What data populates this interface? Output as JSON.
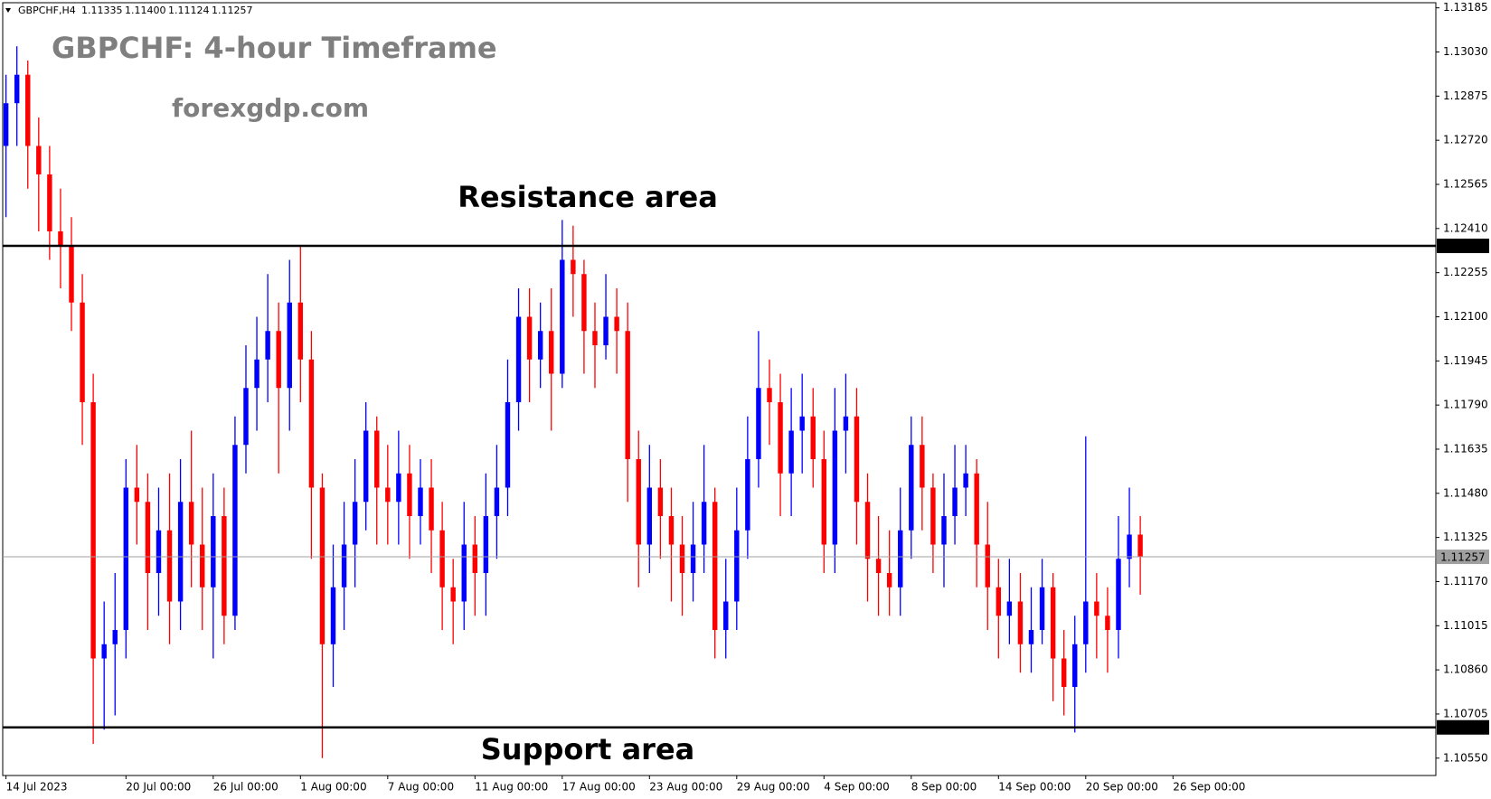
{
  "chart_data": {
    "type": "candlestick",
    "title": "GBPCHF: 4-hour Timeframe",
    "subtitle": "forexgdp.com",
    "header": {
      "symbol": "GBPCHF,H4",
      "open": "1.11335",
      "high": "1.11400",
      "low": "1.11124",
      "close": "1.11257"
    },
    "up_color": "#0000ff",
    "down_color": "#ff0000",
    "open": [
      1.127,
      1.1285,
      1.1295,
      1.127,
      1.126,
      1.124,
      1.1235,
      1.1215,
      1.118,
      1.109,
      1.1095,
      1.11,
      1.115,
      1.1145,
      1.112,
      1.1135,
      1.111,
      1.1145,
      1.113,
      1.1115,
      1.114,
      1.1105,
      1.1165,
      1.1185,
      1.1195,
      1.1205,
      1.1185,
      1.1215,
      1.1195,
      1.115,
      1.1095,
      1.1115,
      1.113,
      1.1145,
      1.117,
      1.115,
      1.1145,
      1.1155,
      1.114,
      1.115,
      1.1135,
      1.1115,
      1.111,
      1.113,
      1.112,
      1.114,
      1.115,
      1.118,
      1.121,
      1.1195,
      1.1205,
      1.119,
      1.123,
      1.1225,
      1.1205,
      1.12,
      1.121,
      1.1205,
      1.116,
      1.113,
      1.115,
      1.114,
      1.113,
      1.112,
      1.113,
      1.1145,
      1.11,
      1.111,
      1.1135,
      1.116,
      1.1185,
      1.118,
      1.1155,
      1.117,
      1.1175,
      1.116,
      1.113,
      1.117,
      1.1175,
      1.1145,
      1.1125,
      1.112,
      1.1115,
      1.1135,
      1.1165,
      1.115,
      1.113,
      1.114,
      1.115,
      1.1155,
      1.113,
      1.1115,
      1.1105,
      1.111,
      1.1095,
      1.11,
      1.1115,
      1.109,
      1.108,
      1.1095,
      1.111,
      1.1105,
      1.11,
      1.1125,
      1.11335
    ],
    "high": [
      1.1295,
      1.1305,
      1.13,
      1.128,
      1.127,
      1.1255,
      1.1245,
      1.1225,
      1.119,
      1.111,
      1.112,
      1.116,
      1.1165,
      1.1155,
      1.115,
      1.1155,
      1.116,
      1.117,
      1.115,
      1.1155,
      1.115,
      1.1175,
      1.12,
      1.121,
      1.1225,
      1.1215,
      1.123,
      1.1235,
      1.1205,
      1.1155,
      1.113,
      1.1145,
      1.116,
      1.118,
      1.1175,
      1.1165,
      1.117,
      1.1165,
      1.116,
      1.116,
      1.1145,
      1.1125,
      1.1145,
      1.114,
      1.1155,
      1.1165,
      1.1195,
      1.122,
      1.122,
      1.1215,
      1.122,
      1.1244,
      1.1242,
      1.123,
      1.1215,
      1.1225,
      1.122,
      1.1215,
      1.117,
      1.1165,
      1.116,
      1.115,
      1.114,
      1.1145,
      1.1165,
      1.115,
      1.1125,
      1.115,
      1.1175,
      1.1205,
      1.1195,
      1.119,
      1.1185,
      1.119,
      1.1185,
      1.117,
      1.1185,
      1.119,
      1.1185,
      1.1155,
      1.114,
      1.1135,
      1.115,
      1.1175,
      1.1175,
      1.1155,
      1.1155,
      1.1165,
      1.1165,
      1.116,
      1.1145,
      1.1125,
      1.1125,
      1.112,
      1.1115,
      1.1125,
      1.112,
      1.11,
      1.1105,
      1.1168,
      1.112,
      1.1115,
      1.114,
      1.115,
      1.114
    ],
    "low": [
      1.1245,
      1.127,
      1.1255,
      1.124,
      1.123,
      1.122,
      1.1205,
      1.1165,
      1.106,
      1.1065,
      1.107,
      1.109,
      1.113,
      1.11,
      1.1105,
      1.1095,
      1.11,
      1.1115,
      1.11,
      1.109,
      1.1095,
      1.11,
      1.1155,
      1.117,
      1.118,
      1.1155,
      1.117,
      1.118,
      1.1125,
      1.1055,
      1.108,
      1.11,
      1.1115,
      1.1135,
      1.113,
      1.113,
      1.113,
      1.1125,
      1.113,
      1.112,
      1.11,
      1.1095,
      1.11,
      1.1105,
      1.1105,
      1.1125,
      1.114,
      1.117,
      1.118,
      1.1185,
      1.117,
      1.1185,
      1.121,
      1.119,
      1.1185,
      1.1195,
      1.119,
      1.1145,
      1.1115,
      1.112,
      1.1125,
      1.111,
      1.1105,
      1.111,
      1.112,
      1.109,
      1.109,
      1.11,
      1.1125,
      1.115,
      1.1165,
      1.114,
      1.114,
      1.1155,
      1.115,
      1.112,
      1.112,
      1.1155,
      1.113,
      1.111,
      1.1105,
      1.1105,
      1.1105,
      1.1125,
      1.1135,
      1.112,
      1.1115,
      1.113,
      1.114,
      1.1115,
      1.11,
      1.109,
      1.1095,
      1.1085,
      1.1085,
      1.1095,
      1.1075,
      1.107,
      1.1064,
      1.1085,
      1.109,
      1.1085,
      1.109,
      1.1115,
      1.11124
    ],
    "close": [
      1.1285,
      1.1295,
      1.127,
      1.126,
      1.124,
      1.1235,
      1.1215,
      1.118,
      1.109,
      1.1095,
      1.11,
      1.115,
      1.1145,
      1.112,
      1.1135,
      1.111,
      1.1145,
      1.113,
      1.1115,
      1.114,
      1.1105,
      1.1165,
      1.1185,
      1.1195,
      1.1205,
      1.1185,
      1.1215,
      1.1195,
      1.115,
      1.1095,
      1.1115,
      1.113,
      1.1145,
      1.117,
      1.115,
      1.1145,
      1.1155,
      1.114,
      1.115,
      1.1135,
      1.1115,
      1.111,
      1.113,
      1.112,
      1.114,
      1.115,
      1.118,
      1.121,
      1.1195,
      1.1205,
      1.119,
      1.123,
      1.1225,
      1.1205,
      1.12,
      1.121,
      1.1205,
      1.116,
      1.113,
      1.115,
      1.114,
      1.113,
      1.112,
      1.113,
      1.1145,
      1.11,
      1.111,
      1.1135,
      1.116,
      1.1185,
      1.118,
      1.1155,
      1.117,
      1.1175,
      1.116,
      1.113,
      1.117,
      1.1175,
      1.1145,
      1.1125,
      1.112,
      1.1115,
      1.1135,
      1.1165,
      1.115,
      1.113,
      1.114,
      1.115,
      1.1155,
      1.113,
      1.1115,
      1.1105,
      1.111,
      1.1095,
      1.11,
      1.1115,
      1.109,
      1.108,
      1.1095,
      1.111,
      1.1105,
      1.11,
      1.1125,
      1.11335,
      1.11257
    ],
    "xlim": [
      -0.3,
      131.1
    ],
    "xticks": [
      {
        "value": 0,
        "label": "14 Jul 2023"
      },
      {
        "value": 11,
        "label": "20 Jul 00:00"
      },
      {
        "value": 19,
        "label": "26 Jul 00:00"
      },
      {
        "value": 27,
        "label": "1 Aug 00:00"
      },
      {
        "value": 35,
        "label": "7 Aug 00:00"
      },
      {
        "value": 43,
        "label": "11 Aug 00:00"
      },
      {
        "value": 51,
        "label": "17 Aug 00:00"
      },
      {
        "value": 59,
        "label": "23 Aug 00:00"
      },
      {
        "value": 67,
        "label": "29 Aug 00:00"
      },
      {
        "value": 75,
        "label": "4 Sep 00:00"
      },
      {
        "value": 83,
        "label": "8 Sep 00:00"
      },
      {
        "value": 91,
        "label": "14 Sep 00:00"
      },
      {
        "value": 99,
        "label": "20 Sep 00:00"
      },
      {
        "value": 107,
        "label": "26 Sep 00:00"
      }
    ],
    "ylim": [
      1.10489,
      1.13203
    ],
    "yticks": [
      1.13185,
      {
        "value": 1.1303,
        "label": "1.13030"
      },
      1.12875,
      {
        "value": 1.1272,
        "label": "1.12720"
      },
      1.12565,
      {
        "value": 1.1241,
        "label": "1.12410"
      },
      1.12255,
      {
        "value": 1.121,
        "label": "1.12100"
      },
      1.11945,
      {
        "value": 1.1179,
        "label": "1.11790"
      },
      1.11635,
      {
        "value": 1.1148,
        "label": "1.11480"
      },
      1.11325,
      {
        "value": 1.1117,
        "label": "1.11170"
      },
      1.11015,
      {
        "value": 1.1086,
        "label": "1.10860"
      },
      1.10705,
      {
        "value": 1.1055,
        "label": "1.10550"
      }
    ],
    "levels": [
      {
        "label": "Resistance area",
        "value": 1.12349,
        "color": "#000000"
      },
      {
        "label": "Support area",
        "value": 1.10658,
        "color": "#000000"
      }
    ],
    "current_price": 1.11257,
    "current_color": "#a0a0a0"
  }
}
